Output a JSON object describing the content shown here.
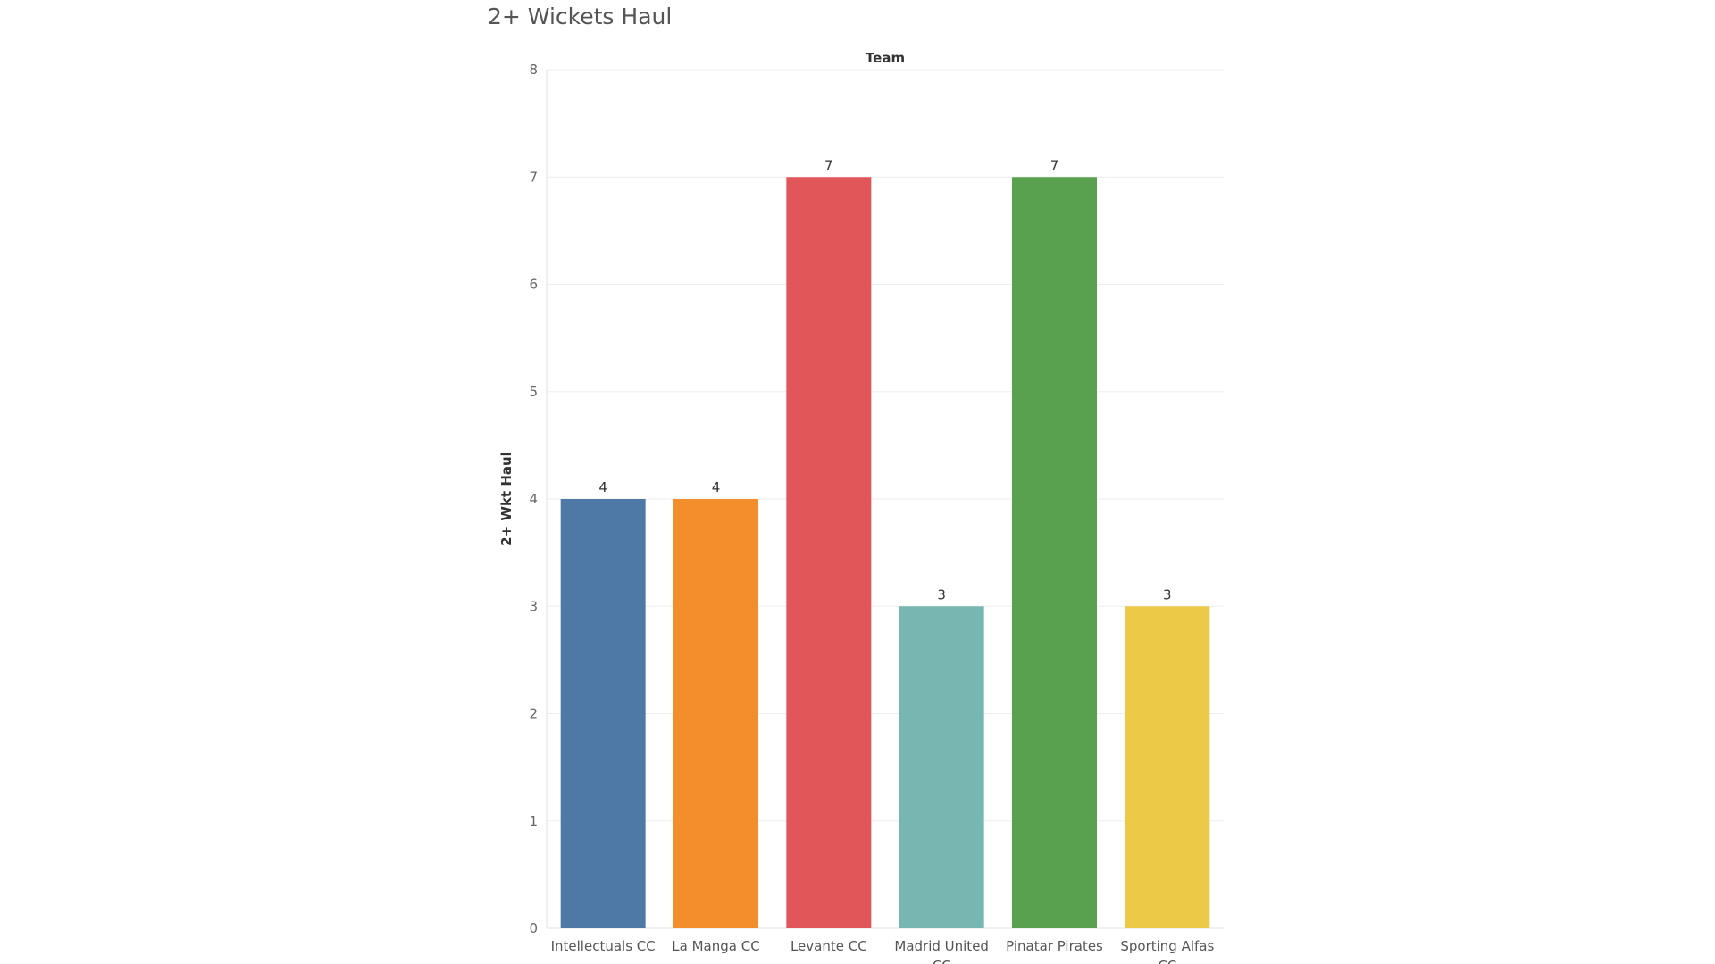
{
  "title": "2+ Wickets Haul",
  "chart_data": {
    "type": "bar",
    "column_header": "Team",
    "ylabel": "2+ Wkt Haul",
    "ylim": [
      0,
      8
    ],
    "yticks": [
      0,
      1,
      2,
      3,
      4,
      5,
      6,
      7,
      8
    ],
    "grid": true,
    "categories": [
      [
        "Intellectuals CC"
      ],
      [
        "La Manga CC"
      ],
      [
        "Levante CC"
      ],
      [
        "Madrid United",
        "CC"
      ],
      [
        "Pinatar Pirates"
      ],
      [
        "Sporting Alfas",
        "CC"
      ]
    ],
    "values": [
      4,
      4,
      7,
      3,
      7,
      3
    ],
    "colors": [
      "#4e79a7",
      "#f28e2b",
      "#e15759",
      "#76b7b2",
      "#59a14f",
      "#edc948"
    ]
  }
}
